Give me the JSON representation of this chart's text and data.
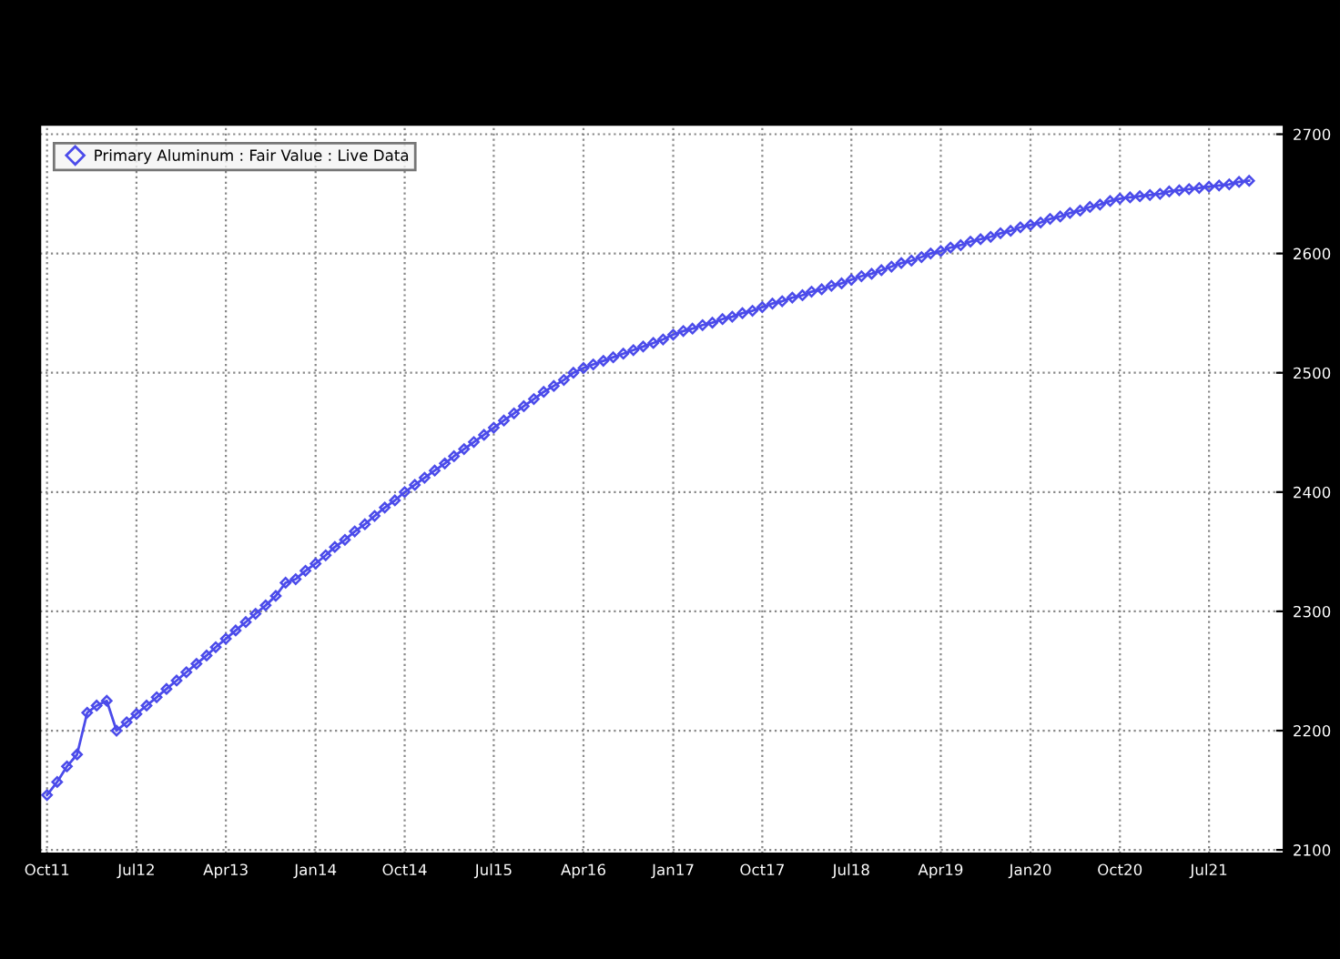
{
  "chart_data": {
    "type": "line",
    "x": [
      "2011-10",
      "2011-11",
      "2011-12",
      "2012-01",
      "2012-02",
      "2012-03",
      "2012-04",
      "2012-05",
      "2012-06",
      "2012-07",
      "2012-08",
      "2012-09",
      "2012-10",
      "2012-11",
      "2012-12",
      "2013-01",
      "2013-02",
      "2013-03",
      "2013-04",
      "2013-05",
      "2013-06",
      "2013-07",
      "2013-08",
      "2013-09",
      "2013-10",
      "2013-11",
      "2013-12",
      "2014-01",
      "2014-02",
      "2014-03",
      "2014-04",
      "2014-05",
      "2014-06",
      "2014-07",
      "2014-08",
      "2014-09",
      "2014-10",
      "2014-11",
      "2014-12",
      "2015-01",
      "2015-02",
      "2015-03",
      "2015-04",
      "2015-05",
      "2015-06",
      "2015-07",
      "2015-08",
      "2015-09",
      "2015-10",
      "2015-11",
      "2015-12",
      "2016-01",
      "2016-02",
      "2016-03",
      "2016-04",
      "2016-05",
      "2016-06",
      "2016-07",
      "2016-08",
      "2016-09",
      "2016-10",
      "2016-11",
      "2016-12",
      "2017-01",
      "2017-02",
      "2017-03",
      "2017-04",
      "2017-05",
      "2017-06",
      "2017-07",
      "2017-08",
      "2017-09",
      "2017-10",
      "2017-11",
      "2017-12",
      "2018-01",
      "2018-02",
      "2018-03",
      "2018-04",
      "2018-05",
      "2018-06",
      "2018-07",
      "2018-08",
      "2018-09",
      "2018-10",
      "2018-11",
      "2018-12",
      "2019-01",
      "2019-02",
      "2019-03",
      "2019-04",
      "2019-05",
      "2019-06",
      "2019-07",
      "2019-08",
      "2019-09",
      "2019-10",
      "2019-11",
      "2019-12",
      "2020-01",
      "2020-02",
      "2020-03",
      "2020-04",
      "2020-05",
      "2020-06",
      "2020-07",
      "2020-08",
      "2020-09",
      "2020-10",
      "2020-11",
      "2020-12",
      "2021-01",
      "2021-02",
      "2021-03",
      "2021-04",
      "2021-05",
      "2021-06",
      "2021-07",
      "2021-08",
      "2021-09",
      "2021-10",
      "2021-11"
    ],
    "series": [
      {
        "name": "Primary Aluminum : Fair Value : Live Data",
        "color": "#4b4bea",
        "values": [
          2146,
          2157,
          2170,
          2180,
          2215,
          2221,
          2225,
          2200,
          2207,
          2214,
          2221,
          2228,
          2235,
          2242,
          2249,
          2256,
          2263,
          2270,
          2277,
          2284,
          2291,
          2298,
          2305,
          2313,
          2324,
          2327,
          2334,
          2340,
          2347,
          2354,
          2360,
          2367,
          2373,
          2380,
          2387,
          2393,
          2400,
          2406,
          2412,
          2418,
          2424,
          2430,
          2436,
          2442,
          2448,
          2454,
          2460,
          2466,
          2472,
          2478,
          2484,
          2489,
          2494,
          2500,
          2504,
          2507,
          2510,
          2513,
          2516,
          2519,
          2522,
          2525,
          2528,
          2532,
          2535,
          2537,
          2540,
          2542,
          2545,
          2547,
          2550,
          2552,
          2555,
          2558,
          2560,
          2563,
          2565,
          2568,
          2570,
          2573,
          2575,
          2578,
          2581,
          2583,
          2586,
          2589,
          2592,
          2594,
          2597,
          2600,
          2602,
          2605,
          2607,
          2610,
          2612,
          2614,
          2617,
          2619,
          2622,
          2624,
          2626,
          2629,
          2631,
          2634,
          2636,
          2639,
          2641,
          2644,
          2646,
          2647,
          2648,
          2649,
          2650,
          2652,
          2653,
          2654,
          2655,
          2656,
          2657,
          2658,
          2660,
          2661
        ]
      }
    ],
    "xlim": [
      "2011-09-10",
      "2022-02-15"
    ],
    "xticks": [
      {
        "value": "2011-10",
        "label": "Oct11"
      },
      {
        "value": "2012-07",
        "label": "Jul12"
      },
      {
        "value": "2013-04",
        "label": "Apr13"
      },
      {
        "value": "2014-01",
        "label": "Jan14"
      },
      {
        "value": "2014-10",
        "label": "Oct14"
      },
      {
        "value": "2015-07",
        "label": "Jul15"
      },
      {
        "value": "2016-04",
        "label": "Apr16"
      },
      {
        "value": "2017-01",
        "label": "Jan17"
      },
      {
        "value": "2017-10",
        "label": "Oct17"
      },
      {
        "value": "2018-07",
        "label": "Jul18"
      },
      {
        "value": "2019-04",
        "label": "Apr19"
      },
      {
        "value": "2020-01",
        "label": "Jan20"
      },
      {
        "value": "2020-10",
        "label": "Oct20"
      },
      {
        "value": "2021-07",
        "label": "Jul21"
      }
    ],
    "ylim": [
      2097,
      2708
    ],
    "yticks": [
      2100,
      2200,
      2300,
      2400,
      2500,
      2600,
      2700
    ],
    "grid": true,
    "legend": "top left",
    "marker": "diamond",
    "line_style": "solid"
  }
}
